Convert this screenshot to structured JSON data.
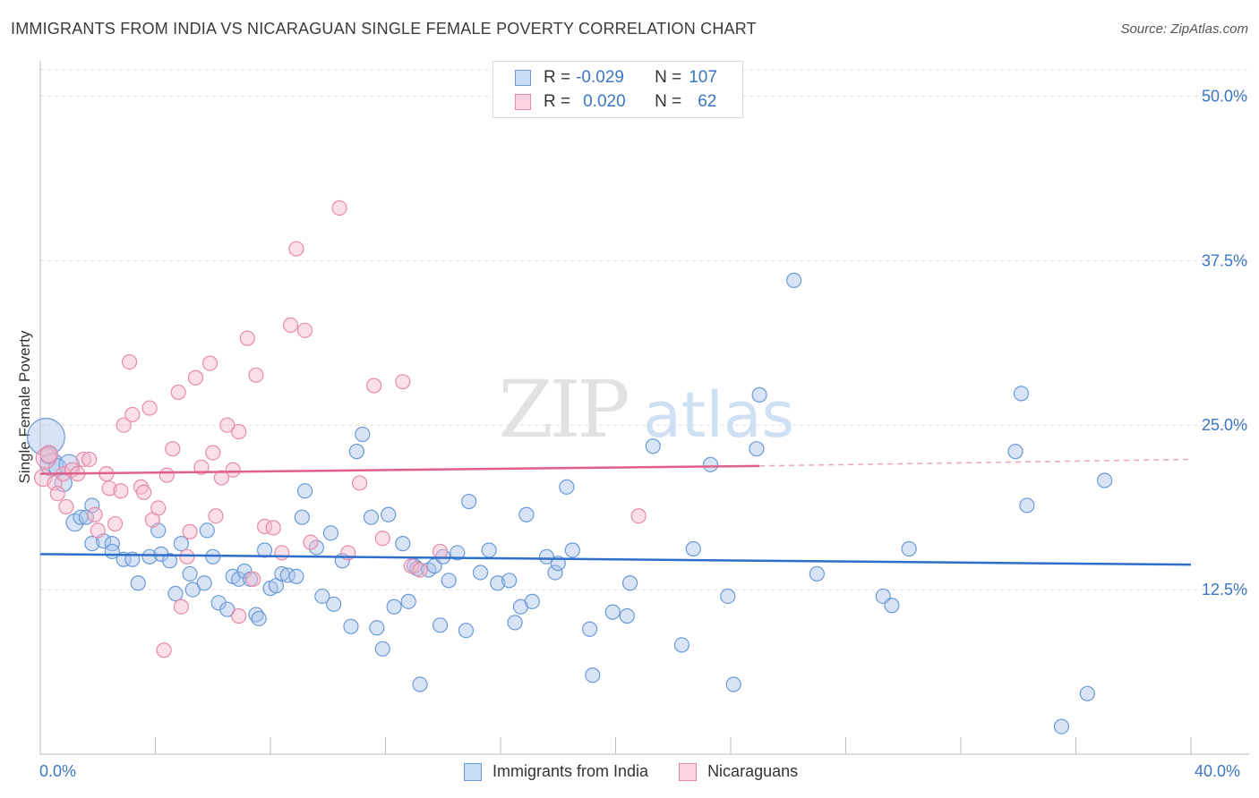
{
  "title": "IMMIGRANTS FROM INDIA VS NICARAGUAN SINGLE FEMALE POVERTY CORRELATION CHART",
  "source": "Source: ZipAtlas.com",
  "watermark": {
    "zip": "ZIP",
    "atlas": "atlas"
  },
  "legend": {
    "rows": [
      {
        "r_label": "R =",
        "r_value": "-0.029",
        "n_label": "N =",
        "n_value": "107",
        "color": "#a9c4ec",
        "stroke": "#6a9ad6"
      },
      {
        "r_label": "R =",
        "r_value": "0.020",
        "n_label": "N =",
        "n_value": "62",
        "color": "#f6b9cc",
        "stroke": "#e88aa8"
      }
    ]
  },
  "bottom_legend": [
    {
      "label": "Immigrants from India",
      "color": "#a9c4ec",
      "stroke": "#6a9ad6"
    },
    {
      "label": "Nicaraguans",
      "color": "#f6b9cc",
      "stroke": "#e88aa8"
    }
  ],
  "chart_data": {
    "type": "scatter",
    "title": "IMMIGRANTS FROM INDIA VS NICARAGUAN SINGLE FEMALE POVERTY CORRELATION CHART",
    "xlabel": "",
    "ylabel": "Single Female Poverty",
    "xlim": [
      0,
      40
    ],
    "ylim": [
      0,
      52
    ],
    "x_tick_labels": [
      {
        "value": 0,
        "label": "0.0%"
      },
      {
        "value": 40,
        "label": "40.0%"
      }
    ],
    "y_tick_labels": [
      {
        "value": 12.5,
        "label": "12.5%"
      },
      {
        "value": 25.0,
        "label": "25.0%"
      },
      {
        "value": 37.5,
        "label": "37.5%"
      },
      {
        "value": 50.0,
        "label": "50.0%"
      }
    ],
    "series": [
      {
        "name": "Immigrants from India",
        "color": "#a9c4ec",
        "stroke": "#6a9ad6",
        "trend": {
          "x0": 0,
          "y0": 15.2,
          "x1": 40,
          "y1": 14.4,
          "color": "#2f6fcc"
        },
        "points": [
          [
            0.2,
            24.1,
            26
          ],
          [
            0.4,
            22.0,
            16
          ],
          [
            0.6,
            21.8,
            12
          ],
          [
            0.8,
            20.6,
            12
          ],
          [
            1.0,
            22.0,
            14
          ],
          [
            1.2,
            17.6,
            12
          ],
          [
            1.4,
            18.0,
            10
          ],
          [
            1.6,
            18.0,
            10
          ],
          [
            1.8,
            18.9,
            10
          ],
          [
            1.8,
            16.0,
            10
          ],
          [
            2.2,
            16.2,
            10
          ],
          [
            2.5,
            16.0,
            10
          ],
          [
            2.5,
            15.4,
            10
          ],
          [
            2.9,
            14.8,
            10
          ],
          [
            3.2,
            14.8,
            10
          ],
          [
            3.4,
            13.0,
            10
          ],
          [
            3.8,
            15.0,
            10
          ],
          [
            4.1,
            17.0,
            10
          ],
          [
            4.2,
            15.2,
            10
          ],
          [
            4.5,
            14.7,
            10
          ],
          [
            4.7,
            12.2,
            10
          ],
          [
            4.9,
            16.0,
            10
          ],
          [
            5.2,
            13.7,
            10
          ],
          [
            5.3,
            12.5,
            10
          ],
          [
            5.7,
            13.0,
            10
          ],
          [
            5.8,
            17.0,
            10
          ],
          [
            6.0,
            15.0,
            10
          ],
          [
            6.2,
            11.5,
            10
          ],
          [
            6.5,
            11.0,
            10
          ],
          [
            6.7,
            13.5,
            10
          ],
          [
            6.9,
            13.3,
            10
          ],
          [
            7.1,
            13.9,
            10
          ],
          [
            7.3,
            13.3,
            10
          ],
          [
            7.5,
            10.6,
            10
          ],
          [
            7.6,
            10.3,
            10
          ],
          [
            7.8,
            15.5,
            10
          ],
          [
            8.0,
            12.6,
            10
          ],
          [
            8.2,
            12.8,
            10
          ],
          [
            8.4,
            13.7,
            10
          ],
          [
            8.6,
            13.6,
            10
          ],
          [
            8.9,
            13.5,
            10
          ],
          [
            9.1,
            18.0,
            10
          ],
          [
            9.2,
            20.0,
            10
          ],
          [
            9.6,
            15.7,
            10
          ],
          [
            9.8,
            12.0,
            10
          ],
          [
            10.1,
            16.8,
            10
          ],
          [
            10.2,
            11.4,
            10
          ],
          [
            10.5,
            14.7,
            10
          ],
          [
            10.8,
            9.7,
            10
          ],
          [
            11.0,
            23.0,
            10
          ],
          [
            11.2,
            24.3,
            10
          ],
          [
            11.5,
            18.0,
            10
          ],
          [
            11.7,
            9.6,
            10
          ],
          [
            11.9,
            8.0,
            10
          ],
          [
            12.1,
            18.2,
            10
          ],
          [
            12.3,
            11.2,
            10
          ],
          [
            12.6,
            16.0,
            10
          ],
          [
            12.8,
            11.6,
            10
          ],
          [
            13.0,
            14.3,
            10
          ],
          [
            13.1,
            14.1,
            10
          ],
          [
            13.2,
            5.3,
            10
          ],
          [
            13.5,
            14.0,
            10
          ],
          [
            13.7,
            14.3,
            10
          ],
          [
            13.9,
            9.8,
            10
          ],
          [
            14.0,
            15.0,
            10
          ],
          [
            14.2,
            13.2,
            10
          ],
          [
            14.5,
            15.3,
            10
          ],
          [
            14.8,
            9.4,
            10
          ],
          [
            14.9,
            19.2,
            10
          ],
          [
            15.3,
            13.8,
            10
          ],
          [
            15.6,
            15.5,
            10
          ],
          [
            15.9,
            13.0,
            10
          ],
          [
            16.3,
            13.2,
            10
          ],
          [
            16.5,
            10.0,
            10
          ],
          [
            16.7,
            11.2,
            10
          ],
          [
            16.9,
            18.2,
            10
          ],
          [
            17.1,
            11.6,
            10
          ],
          [
            17.6,
            15.0,
            10
          ],
          [
            17.9,
            13.8,
            10
          ],
          [
            18.0,
            14.5,
            10
          ],
          [
            18.3,
            20.3,
            10
          ],
          [
            18.5,
            15.5,
            10
          ],
          [
            19.1,
            9.5,
            10
          ],
          [
            19.2,
            6.0,
            10
          ],
          [
            19.9,
            10.8,
            10
          ],
          [
            20.4,
            10.5,
            10
          ],
          [
            20.5,
            13.0,
            10
          ],
          [
            21.3,
            23.4,
            10
          ],
          [
            22.3,
            8.3,
            10
          ],
          [
            22.7,
            15.6,
            10
          ],
          [
            23.3,
            22.0,
            10
          ],
          [
            23.9,
            12.0,
            10
          ],
          [
            24.1,
            5.3,
            10
          ],
          [
            24.9,
            23.2,
            10
          ],
          [
            25.0,
            27.3,
            10
          ],
          [
            26.2,
            36.0,
            10
          ],
          [
            27.0,
            13.7,
            10
          ],
          [
            29.3,
            12.0,
            10
          ],
          [
            29.6,
            11.3,
            10
          ],
          [
            30.2,
            15.6,
            10
          ],
          [
            33.9,
            23.0,
            10
          ],
          [
            34.1,
            27.4,
            10
          ],
          [
            34.3,
            18.9,
            10
          ],
          [
            35.5,
            2.1,
            10
          ],
          [
            36.4,
            4.6,
            10
          ],
          [
            37.0,
            20.8,
            10
          ],
          [
            0.3,
            22.7,
            12
          ]
        ]
      },
      {
        "name": "Nicaraguans",
        "color": "#f6b9cc",
        "stroke": "#e88aa8",
        "trend": {
          "x0": 0,
          "y0": 21.3,
          "x1": 25.0,
          "y1": 21.9,
          "color": "#e0608d",
          "dash_to_x": 40,
          "dash_to_y": 22.4
        },
        "points": [
          [
            0.1,
            21.0,
            12
          ],
          [
            0.2,
            22.5,
            14
          ],
          [
            0.3,
            22.8,
            12
          ],
          [
            0.5,
            20.6,
            10
          ],
          [
            0.6,
            19.8,
            10
          ],
          [
            0.8,
            21.3,
            10
          ],
          [
            0.9,
            18.8,
            10
          ],
          [
            1.1,
            21.6,
            10
          ],
          [
            1.3,
            21.3,
            10
          ],
          [
            1.5,
            22.4,
            10
          ],
          [
            1.7,
            22.4,
            10
          ],
          [
            1.9,
            18.2,
            10
          ],
          [
            2.0,
            17.0,
            10
          ],
          [
            2.3,
            21.3,
            10
          ],
          [
            2.4,
            20.2,
            10
          ],
          [
            2.6,
            17.5,
            10
          ],
          [
            2.8,
            20.0,
            10
          ],
          [
            2.9,
            25.0,
            10
          ],
          [
            3.1,
            29.8,
            10
          ],
          [
            3.2,
            25.8,
            10
          ],
          [
            3.5,
            20.3,
            10
          ],
          [
            3.6,
            19.9,
            10
          ],
          [
            3.8,
            26.3,
            10
          ],
          [
            3.9,
            17.8,
            10
          ],
          [
            4.1,
            18.7,
            10
          ],
          [
            4.3,
            7.9,
            10
          ],
          [
            4.4,
            21.2,
            10
          ],
          [
            4.6,
            23.2,
            10
          ],
          [
            4.8,
            27.5,
            10
          ],
          [
            4.9,
            11.2,
            10
          ],
          [
            5.1,
            15.0,
            10
          ],
          [
            5.2,
            16.9,
            10
          ],
          [
            5.4,
            28.6,
            10
          ],
          [
            5.6,
            21.8,
            10
          ],
          [
            5.9,
            29.7,
            10
          ],
          [
            6.0,
            22.9,
            10
          ],
          [
            6.1,
            18.1,
            10
          ],
          [
            6.3,
            21.0,
            10
          ],
          [
            6.5,
            25.0,
            10
          ],
          [
            6.7,
            21.6,
            10
          ],
          [
            6.9,
            10.5,
            10
          ],
          [
            6.9,
            24.5,
            10
          ],
          [
            7.2,
            31.6,
            10
          ],
          [
            7.4,
            13.3,
            10
          ],
          [
            7.5,
            28.8,
            10
          ],
          [
            7.8,
            17.3,
            10
          ],
          [
            8.1,
            17.2,
            10
          ],
          [
            8.4,
            15.3,
            10
          ],
          [
            8.7,
            32.6,
            10
          ],
          [
            8.9,
            38.4,
            10
          ],
          [
            9.2,
            32.2,
            10
          ],
          [
            9.4,
            16.1,
            10
          ],
          [
            10.4,
            41.5,
            10
          ],
          [
            10.7,
            15.3,
            10
          ],
          [
            11.1,
            20.6,
            10
          ],
          [
            11.6,
            28.0,
            10
          ],
          [
            11.9,
            16.4,
            10
          ],
          [
            12.6,
            28.3,
            10
          ],
          [
            12.9,
            14.3,
            10
          ],
          [
            13.2,
            14.0,
            10
          ],
          [
            13.9,
            15.4,
            10
          ],
          [
            20.8,
            18.1,
            10
          ]
        ]
      }
    ]
  }
}
